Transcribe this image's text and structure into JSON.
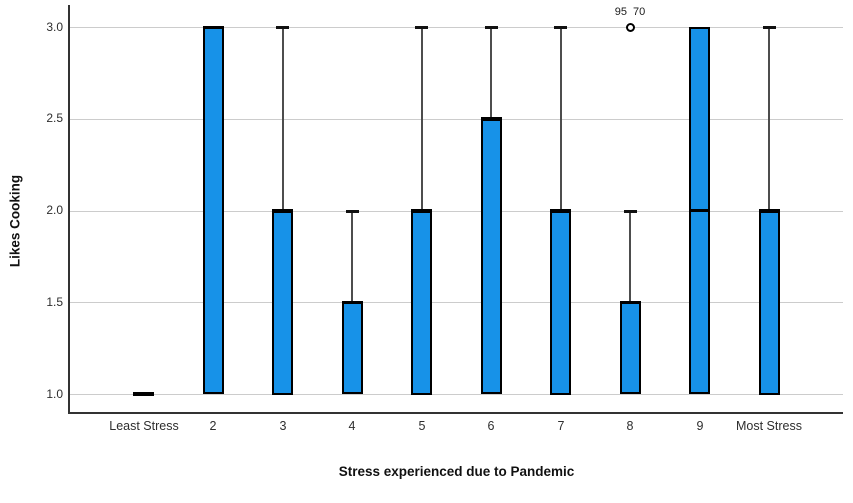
{
  "figure": {
    "background": "#ffffff"
  },
  "chart_data": {
    "type": "boxplot",
    "title": "",
    "xlabel": "Stress experienced due to Pandemic",
    "ylabel": "Likes Cooking",
    "categories": [
      "Least Stress",
      "2",
      "3",
      "4",
      "5",
      "6",
      "7",
      "8",
      "9",
      "Most Stress"
    ],
    "ytick_labels": [
      "1.0",
      "1.5",
      "2.0",
      "2.5",
      "3.0"
    ],
    "ylim": [
      0.9,
      3.12
    ],
    "grid": "horizontal",
    "legend": "none",
    "boxes": [
      {
        "category": "Least Stress",
        "whisker_low": 1.0,
        "q1": 1.0,
        "median": 1.0,
        "q3": 1.0,
        "whisker_high": 1.0,
        "outliers": []
      },
      {
        "category": "2",
        "whisker_low": 1.0,
        "q1": 1.0,
        "median": 3.0,
        "q3": 3.0,
        "whisker_high": 3.0,
        "outliers": []
      },
      {
        "category": "3",
        "whisker_low": 1.0,
        "q1": 1.0,
        "median": 2.0,
        "q3": 2.0,
        "whisker_high": 3.0,
        "outliers": []
      },
      {
        "category": "4",
        "whisker_low": 1.0,
        "q1": 1.0,
        "median": 1.5,
        "q3": 1.5,
        "whisker_high": 2.0,
        "outliers": []
      },
      {
        "category": "5",
        "whisker_low": 1.0,
        "q1": 1.0,
        "median": 2.0,
        "q3": 2.0,
        "whisker_high": 3.0,
        "outliers": []
      },
      {
        "category": "6",
        "whisker_low": 1.0,
        "q1": 1.0,
        "median": 2.5,
        "q3": 2.5,
        "whisker_high": 3.0,
        "outliers": []
      },
      {
        "category": "7",
        "whisker_low": 1.0,
        "q1": 1.0,
        "median": 2.0,
        "q3": 2.0,
        "whisker_high": 3.0,
        "outliers": []
      },
      {
        "category": "8",
        "whisker_low": 1.0,
        "q1": 1.0,
        "median": 1.5,
        "q3": 1.5,
        "whisker_high": 2.0,
        "outliers": [
          {
            "value": 3.0,
            "labels": [
              "95",
              "70"
            ]
          }
        ]
      },
      {
        "category": "9",
        "whisker_low": 1.0,
        "q1": 1.0,
        "median": 2.0,
        "q3": 3.0,
        "whisker_high": 3.0,
        "outliers": []
      },
      {
        "category": "Most Stress",
        "whisker_low": 1.0,
        "q1": 1.0,
        "median": 2.0,
        "q3": 2.0,
        "whisker_high": 3.0,
        "outliers": []
      }
    ],
    "colors": {
      "box_fill": "#1792e8",
      "box_border": "#000000",
      "whisker": "#4d4d4d",
      "whisker_cap": "#111111",
      "gridline": "#cccccc",
      "axis": "#333333",
      "outlier_fill": "#ffffff",
      "outlier_stroke": "#000000",
      "text": "#2e2e2e"
    }
  }
}
